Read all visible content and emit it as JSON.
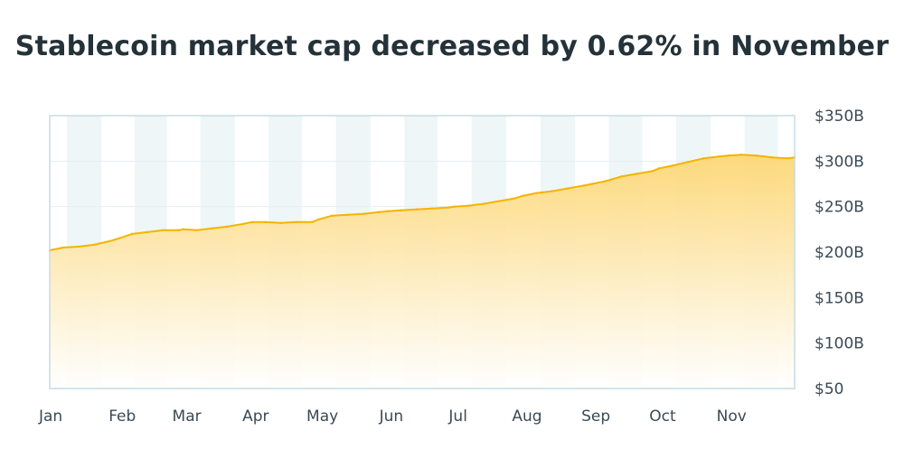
{
  "chart_data": {
    "type": "area",
    "title": "Stablecoin market cap decreased by 0.62% in November",
    "xlabel": "",
    "ylabel": "",
    "x_ticks": [
      "Jan",
      "Feb",
      "Mar",
      "Apr",
      "May",
      "Jun",
      "Jul",
      "Aug",
      "Sep",
      "Oct",
      "Nov"
    ],
    "y_ticks": [
      "$50",
      "$100B",
      "$150B",
      "$200B",
      "$250B",
      "$300B",
      "$350B"
    ],
    "y_tick_values": [
      50,
      100,
      150,
      200,
      250,
      300,
      350
    ],
    "ylim": [
      50,
      350
    ],
    "y_unit": "$B",
    "y_axis_position": "right",
    "grid": true,
    "colors": {
      "line": "#f4b400",
      "fill_top": "#fdd776",
      "fill_bottom": "#ffffff",
      "band": "#eef6f8",
      "frame": "#c7dbe2"
    },
    "series": [
      {
        "x": [
          "2024-01-01",
          "2024-01-07",
          "2024-01-14",
          "2024-01-21",
          "2024-01-28",
          "2024-02-01",
          "2024-02-07",
          "2024-02-14",
          "2024-02-21",
          "2024-02-28",
          "2024-03-01",
          "2024-03-07",
          "2024-03-14",
          "2024-03-21",
          "2024-03-28",
          "2024-04-01",
          "2024-04-07",
          "2024-04-14",
          "2024-04-21",
          "2024-04-28",
          "2024-05-01",
          "2024-05-07",
          "2024-05-14",
          "2024-05-21",
          "2024-05-28",
          "2024-06-01",
          "2024-06-07",
          "2024-06-14",
          "2024-06-21",
          "2024-06-28",
          "2024-07-01",
          "2024-07-07",
          "2024-07-14",
          "2024-07-21",
          "2024-07-28",
          "2024-08-01",
          "2024-08-07",
          "2024-08-14",
          "2024-08-21",
          "2024-08-28",
          "2024-09-01",
          "2024-09-07",
          "2024-09-14",
          "2024-09-21",
          "2024-09-28",
          "2024-10-01",
          "2024-10-07",
          "2024-10-14",
          "2024-10-21",
          "2024-10-28",
          "2024-11-01",
          "2024-11-07",
          "2024-11-14",
          "2024-11-21",
          "2024-11-28",
          "2024-12-01"
        ],
        "values": [
          202,
          205,
          206,
          208,
          212,
          215,
          220,
          222,
          224,
          224,
          225,
          224,
          226,
          228,
          231,
          233,
          233,
          232,
          233,
          233,
          236,
          240,
          241,
          242,
          244,
          245,
          246,
          247,
          248,
          249,
          250,
          251,
          253,
          256,
          259,
          262,
          265,
          267,
          270,
          273,
          275,
          278,
          283,
          286,
          289,
          292,
          295,
          299,
          303,
          305,
          306,
          307,
          306,
          304,
          303,
          304
        ]
      }
    ]
  }
}
